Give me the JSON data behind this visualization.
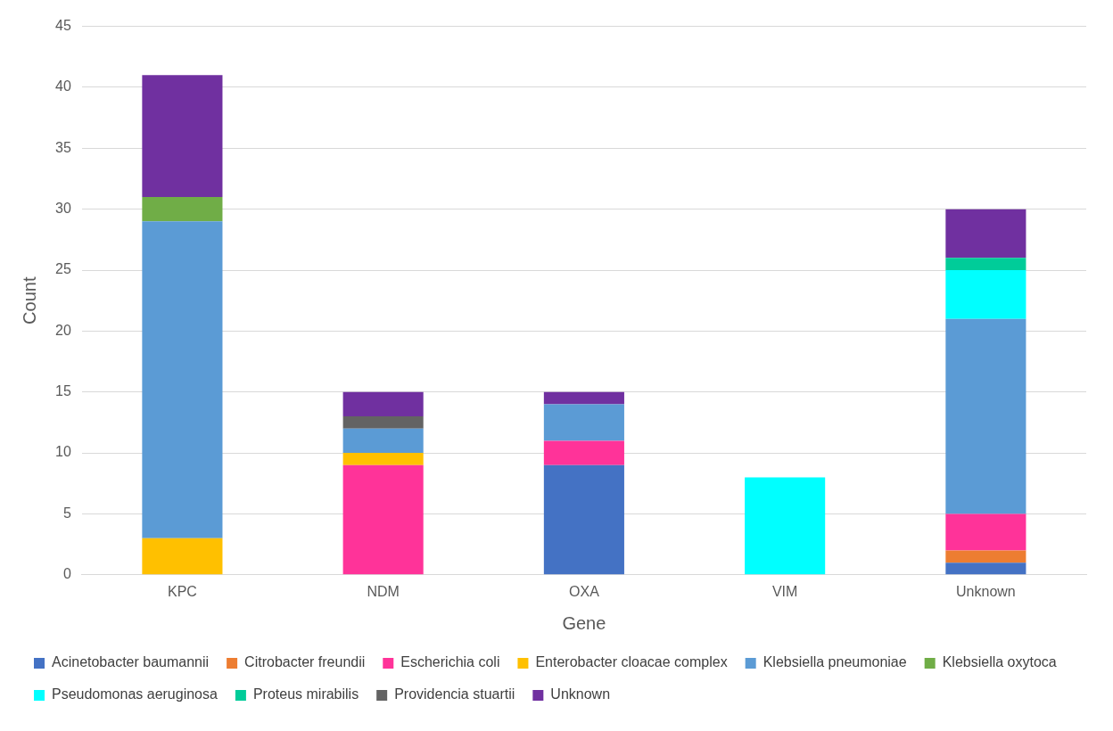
{
  "chart_data": {
    "type": "bar",
    "stacked": true,
    "xlabel": "Gene",
    "ylabel": "Count",
    "categories": [
      "KPC",
      "NDM",
      "OXA",
      "VIM",
      "Unknown"
    ],
    "ylim": [
      0,
      45
    ],
    "yticks": [
      0,
      5,
      10,
      15,
      20,
      25,
      30,
      35,
      40,
      45
    ],
    "grid": "y",
    "legend": "bottom",
    "series": [
      {
        "name": "Acinetobacter baumannii",
        "color": "#4472c4",
        "values": [
          null,
          null,
          9,
          null,
          1
        ]
      },
      {
        "name": "Citrobacter freundii",
        "color": "#ed7d31",
        "values": [
          null,
          null,
          null,
          null,
          1
        ]
      },
      {
        "name": "Escherichia coli",
        "color": "#ff3399",
        "values": [
          null,
          9,
          2,
          null,
          3
        ]
      },
      {
        "name": "Enterobacter cloacae complex",
        "color": "#ffc000",
        "values": [
          3,
          1,
          null,
          null,
          null
        ]
      },
      {
        "name": "Klebsiella pneumoniae",
        "color": "#5b9bd5",
        "values": [
          26,
          2,
          3,
          null,
          16
        ]
      },
      {
        "name": "Klebsiella oxytoca",
        "color": "#70ad47",
        "values": [
          2,
          null,
          null,
          null,
          null
        ]
      },
      {
        "name": "Pseudomonas aeruginosa",
        "color": "#00ffff",
        "values": [
          null,
          null,
          null,
          8,
          4
        ]
      },
      {
        "name": "Proteus mirabilis",
        "color": "#00cc99",
        "values": [
          null,
          null,
          null,
          null,
          1
        ]
      },
      {
        "name": "Providencia stuartii",
        "color": "#636363",
        "values": [
          null,
          1,
          null,
          null,
          null
        ]
      },
      {
        "name": "Unknown",
        "color": "#7030a0",
        "values": [
          10,
          2,
          1,
          null,
          4
        ]
      }
    ]
  }
}
